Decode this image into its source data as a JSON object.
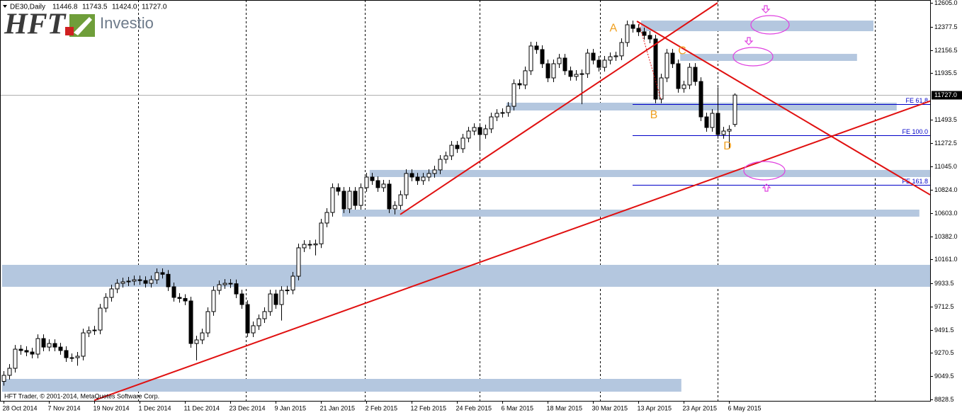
{
  "chart_data": {
    "type": "candlestick",
    "header": {
      "symbol": "DE30,Daily",
      "values": [
        "11446.8",
        "11743.5",
        "11424.0",
        "11727.0"
      ]
    },
    "logo": {
      "brand": "HFT",
      "name": "Investio"
    },
    "copyright": "HFT Trader, © 2001-2014, MetaQuotes Software Corp.",
    "xlim": [
      -0.625,
      163.5
    ],
    "ylim": [
      8815,
      12632
    ],
    "yticks": [
      {
        "value": 12605,
        "label": "12605.0"
      },
      {
        "value": 12377.5,
        "label": "12377.5"
      },
      {
        "value": 12156.5,
        "label": "12156.5"
      },
      {
        "value": 11935.5,
        "label": "11935.5"
      },
      {
        "value": 11493.5,
        "label": "11493.5"
      },
      {
        "value": 11272.5,
        "label": "11272.5"
      },
      {
        "value": 11045,
        "label": "11045.0"
      },
      {
        "value": 10824,
        "label": "10824.0"
      },
      {
        "value": 10603,
        "label": "10603.0"
      },
      {
        "value": 10382,
        "label": "10382.0"
      },
      {
        "value": 10161,
        "label": "10161.0"
      },
      {
        "value": 9933.5,
        "label": "9933.5"
      },
      {
        "value": 9712.5,
        "label": "9712.5"
      },
      {
        "value": 9491.5,
        "label": "9491.5"
      },
      {
        "value": 9270.5,
        "label": "9270.5"
      },
      {
        "value": 9049.5,
        "label": "9049.5"
      },
      {
        "value": 8828.5,
        "label": "8828.5"
      }
    ],
    "xticks": [
      {
        "value": 0,
        "label": "28 Oct 2014"
      },
      {
        "value": 8,
        "label": "7 Nov 2014"
      },
      {
        "value": 16,
        "label": "19 Nov 2014"
      },
      {
        "value": 24,
        "label": "1 Dec 2014"
      },
      {
        "value": 32,
        "label": "11 Dec 2014"
      },
      {
        "value": 40,
        "label": "23 Dec 2014"
      },
      {
        "value": 48,
        "label": "9 Jan 2015"
      },
      {
        "value": 56,
        "label": "21 Jan 2015"
      },
      {
        "value": 64,
        "label": "2 Feb 2015"
      },
      {
        "value": 72,
        "label": "12 Feb 2015"
      },
      {
        "value": 80,
        "label": "24 Feb 2015"
      },
      {
        "value": 88,
        "label": "6 Mar 2015"
      },
      {
        "value": 96,
        "label": "18 Mar 2015"
      },
      {
        "value": 104,
        "label": "30 Mar 2015"
      },
      {
        "value": 112,
        "label": "13 Apr 2015"
      },
      {
        "value": 120,
        "label": "23 Apr 2015"
      },
      {
        "value": 128,
        "label": "6 May 2015"
      }
    ],
    "month_grid": [
      23.75,
      42.75,
      63.75,
      84,
      105.25,
      126,
      153.75
    ],
    "bull_color": "#ffffff",
    "bear_color": "#000000",
    "ohlc": [
      [
        9000,
        9098,
        8960,
        9058
      ],
      [
        9058,
        9165,
        9018,
        9125
      ],
      [
        9125,
        9347,
        9085,
        9307
      ],
      [
        9307,
        9347,
        9254,
        9294
      ],
      [
        9294,
        9334,
        9240,
        9280
      ],
      [
        9280,
        9320,
        9220,
        9260
      ],
      [
        9260,
        9448,
        9220,
        9408
      ],
      [
        9408,
        9448,
        9287,
        9327
      ],
      [
        9327,
        9401,
        9287,
        9361
      ],
      [
        9361,
        9401,
        9287,
        9327
      ],
      [
        9327,
        9367,
        9254,
        9294
      ],
      [
        9294,
        9334,
        9186,
        9226
      ],
      [
        9226,
        9266,
        9186,
        9226
      ],
      [
        9226,
        9280,
        9150,
        9240
      ],
      [
        9240,
        9502,
        9200,
        9462
      ],
      [
        9462,
        9523,
        9422,
        9483
      ],
      [
        9483,
        9529,
        9443,
        9489
      ],
      [
        9489,
        9738,
        9449,
        9698
      ],
      [
        9698,
        9840,
        9658,
        9800
      ],
      [
        9800,
        9921,
        9760,
        9881
      ],
      [
        9881,
        9974,
        9841,
        9934
      ],
      [
        9934,
        9988,
        9894,
        9948
      ],
      [
        9948,
        9995,
        9908,
        9955
      ],
      [
        9955,
        10008,
        9915,
        9968
      ],
      [
        9968,
        10008,
        9920,
        9960
      ],
      [
        9960,
        10000,
        9894,
        9934
      ],
      [
        9934,
        10008,
        9894,
        9968
      ],
      [
        9968,
        10076,
        9928,
        10036
      ],
      [
        10036,
        10076,
        9980,
        10020
      ],
      [
        10020,
        10060,
        9861,
        9901
      ],
      [
        9901,
        9941,
        9760,
        9800
      ],
      [
        9800,
        9840,
        9750,
        9790
      ],
      [
        9790,
        9830,
        9726,
        9766
      ],
      [
        9766,
        9806,
        9321,
        9361
      ],
      [
        9361,
        9435,
        9200,
        9395
      ],
      [
        9395,
        9502,
        9355,
        9462
      ],
      [
        9462,
        9705,
        9422,
        9665
      ],
      [
        9665,
        9907,
        9625,
        9867
      ],
      [
        9867,
        9961,
        9827,
        9921
      ],
      [
        9921,
        9974,
        9881,
        9934
      ],
      [
        9934,
        9974,
        9890,
        9930
      ],
      [
        9930,
        9970,
        9793,
        9833
      ],
      [
        9833,
        9873,
        9692,
        9732
      ],
      [
        9732,
        9772,
        9422,
        9462
      ],
      [
        9462,
        9570,
        9422,
        9530
      ],
      [
        9530,
        9637,
        9490,
        9597
      ],
      [
        9597,
        9705,
        9557,
        9665
      ],
      [
        9665,
        9873,
        9625,
        9833
      ],
      [
        9833,
        9873,
        9692,
        9732
      ],
      [
        9732,
        9907,
        9580,
        9867
      ],
      [
        9867,
        9910,
        9827,
        9870
      ],
      [
        9870,
        10042,
        9830,
        10002
      ],
      [
        10002,
        10312,
        9962,
        10272
      ],
      [
        10272,
        10345,
        10232,
        10305
      ],
      [
        10305,
        10345,
        10260,
        10300
      ],
      [
        10300,
        10350,
        10200,
        10310
      ],
      [
        10310,
        10548,
        10270,
        10508
      ],
      [
        10508,
        10649,
        10468,
        10609
      ],
      [
        10609,
        10885,
        10569,
        10845
      ],
      [
        10845,
        10885,
        10771,
        10811
      ],
      [
        10811,
        10851,
        10603,
        10643
      ],
      [
        10643,
        10851,
        10603,
        10811
      ],
      [
        10811,
        10851,
        10636,
        10676
      ],
      [
        10676,
        10885,
        10636,
        10845
      ],
      [
        10845,
        10986,
        10805,
        10946
      ],
      [
        10946,
        10986,
        10872,
        10912
      ],
      [
        10912,
        10952,
        10805,
        10845
      ],
      [
        10845,
        10919,
        10805,
        10879
      ],
      [
        10879,
        10919,
        10603,
        10643
      ],
      [
        10643,
        10716,
        10590,
        10676
      ],
      [
        10676,
        10817,
        10636,
        10777
      ],
      [
        10777,
        11020,
        10737,
        10980
      ],
      [
        10980,
        11020,
        10906,
        10946
      ],
      [
        10946,
        10986,
        10872,
        10912
      ],
      [
        10912,
        10986,
        10872,
        10946
      ],
      [
        10946,
        11020,
        10906,
        10980
      ],
      [
        10980,
        11054,
        10940,
        11014
      ],
      [
        11014,
        11155,
        10974,
        11115
      ],
      [
        11115,
        11188,
        11075,
        11148
      ],
      [
        11148,
        11289,
        11108,
        11249
      ],
      [
        11249,
        11289,
        11176,
        11216
      ],
      [
        11216,
        11357,
        11176,
        11317
      ],
      [
        11317,
        11424,
        11277,
        11384
      ],
      [
        11384,
        11458,
        11344,
        11418
      ],
      [
        11418,
        11458,
        11200,
        11351
      ],
      [
        11351,
        11445,
        11311,
        11405
      ],
      [
        11405,
        11559,
        11365,
        11519
      ],
      [
        11519,
        11593,
        11479,
        11553
      ],
      [
        11553,
        11600,
        11513,
        11560
      ],
      [
        11560,
        11660,
        11520,
        11620
      ],
      [
        11620,
        11876,
        11580,
        11836
      ],
      [
        11836,
        11876,
        11783,
        11823
      ],
      [
        11823,
        11998,
        11783,
        11958
      ],
      [
        11958,
        12234,
        11918,
        12194
      ],
      [
        12194,
        12234,
        12120,
        12160
      ],
      [
        12160,
        12200,
        11985,
        12025
      ],
      [
        12025,
        12065,
        11850,
        11890
      ],
      [
        11890,
        12065,
        11850,
        12025
      ],
      [
        12025,
        12119,
        11985,
        12079
      ],
      [
        12079,
        12119,
        11918,
        11958
      ],
      [
        11958,
        11998,
        11864,
        11904
      ],
      [
        11904,
        11964,
        11864,
        11924
      ],
      [
        11924,
        11970,
        11640,
        11930
      ],
      [
        11930,
        12166,
        11890,
        12126
      ],
      [
        12126,
        12166,
        12019,
        12059
      ],
      [
        12059,
        12099,
        11951,
        11991
      ],
      [
        11991,
        12099,
        11951,
        12059
      ],
      [
        12059,
        12132,
        12019,
        12092
      ],
      [
        12092,
        12140,
        12052,
        12100
      ],
      [
        12100,
        12267,
        12060,
        12227
      ],
      [
        12227,
        12436,
        12187,
        12396
      ],
      [
        12396,
        12436,
        12322,
        12362
      ],
      [
        12362,
        12402,
        12289,
        12329
      ],
      [
        12329,
        12369,
        12255,
        12295
      ],
      [
        12295,
        12335,
        12221,
        12261
      ],
      [
        12261,
        12301,
        11648,
        11688
      ],
      [
        11688,
        11930,
        11648,
        11890
      ],
      [
        11890,
        12166,
        11850,
        12126
      ],
      [
        12126,
        12166,
        11985,
        12025
      ],
      [
        12025,
        12065,
        11749,
        11789
      ],
      [
        11789,
        11863,
        11749,
        11823
      ],
      [
        11823,
        12031,
        11783,
        11991
      ],
      [
        11991,
        12031,
        11816,
        11856
      ],
      [
        11856,
        11896,
        11479,
        11519
      ],
      [
        11519,
        11559,
        11378,
        11418
      ],
      [
        11418,
        11593,
        11378,
        11553
      ],
      [
        11553,
        11800,
        11311,
        11351
      ],
      [
        11351,
        11424,
        11311,
        11384
      ],
      [
        11384,
        11440,
        11220,
        11400
      ],
      [
        11446.8,
        11743.5,
        11424.0,
        11727.0
      ]
    ],
    "last_price_label": "11727.0",
    "zone_color": "#b4c7df",
    "zones": [
      {
        "from": 112.5,
        "to": 153.5,
        "low": 12335,
        "high": 12436
      },
      {
        "from": 119.4,
        "to": 150.6,
        "low": 12052,
        "high": 12119
      },
      {
        "from": 88.75,
        "to": 157.6,
        "low": 11580,
        "high": 11654
      },
      {
        "from": 64.6,
        "to": 163.5,
        "low": 10946,
        "high": 11014
      },
      {
        "from": 59.75,
        "to": 161.6,
        "low": 10569,
        "high": 10636
      },
      {
        "from": -0.25,
        "to": 163.5,
        "low": 9901,
        "high": 10110
      },
      {
        "from": -0.25,
        "to": 119.6,
        "low": 8902,
        "high": 9024
      }
    ],
    "trend_color": "#e01010",
    "trendlines": [
      {
        "x": [
          70,
          126
        ],
        "y": [
          10590,
          12605
        ]
      },
      {
        "x": [
          16,
          163.5
        ],
        "y": [
          8820,
          11670
        ]
      },
      {
        "x": [
          111.75,
          163.5
        ],
        "y": [
          12430,
          10777
        ]
      }
    ],
    "dotted_line": {
      "x": [
        112,
        116
      ],
      "y": [
        12430,
        11688
      ]
    },
    "fe_color": "#0000c8",
    "fe_levels": [
      {
        "label": "FE 61.8",
        "value": 11641,
        "from": 111
      },
      {
        "label": "FE 100.0",
        "value": 11344,
        "from": 111
      },
      {
        "label": "FE 161.8",
        "value": 10872,
        "from": 111
      }
    ],
    "point_color": "#f0a020",
    "points": [
      {
        "label": "A",
        "x": 107.6,
        "y": 12362
      },
      {
        "label": "B",
        "x": 114.75,
        "y": 11533
      },
      {
        "label": "C",
        "x": 119.75,
        "y": 12146
      },
      {
        "label": "D",
        "x": 127.75,
        "y": 11236
      }
    ]
  }
}
